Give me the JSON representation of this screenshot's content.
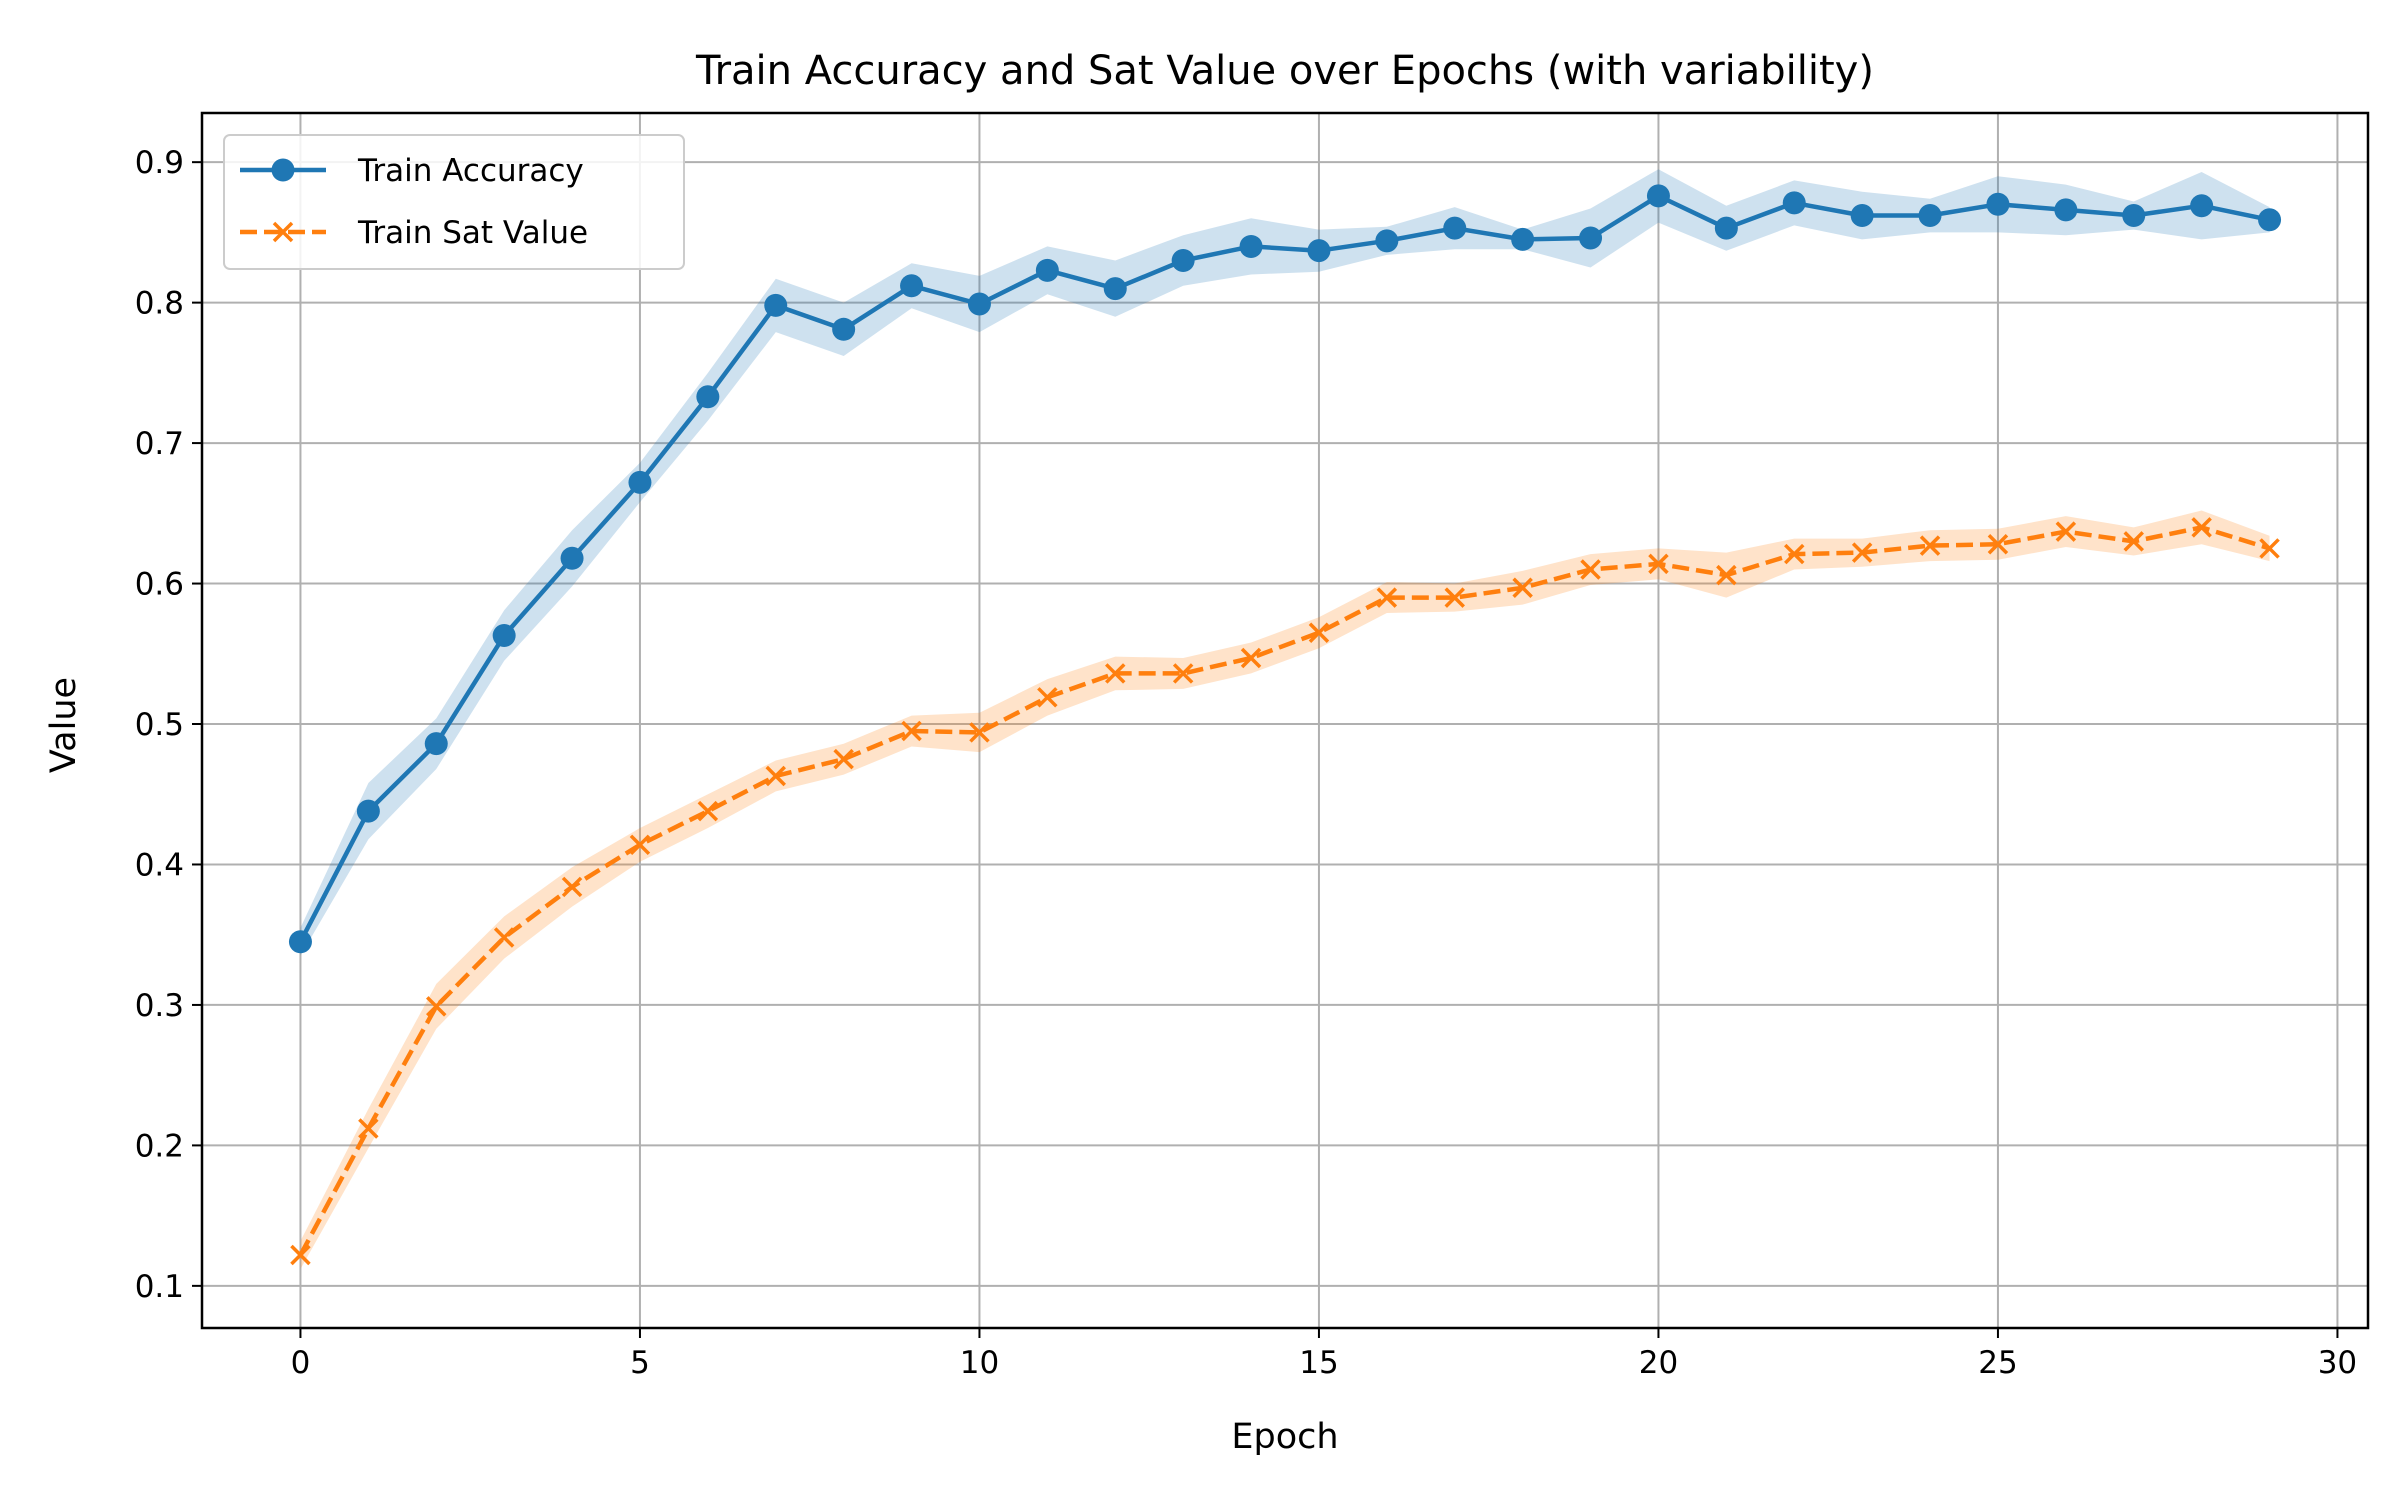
{
  "chart_data": {
    "type": "line",
    "title": "Train Accuracy and Sat Value over Epochs (with variability)",
    "xlabel": "Epoch",
    "ylabel": "Value",
    "xlim": [
      -1.45,
      30.45
    ],
    "ylim": [
      0.07,
      0.935
    ],
    "xticks": [
      0,
      5,
      10,
      15,
      20,
      25,
      30
    ],
    "yticks": [
      0.1,
      0.2,
      0.3,
      0.4,
      0.5,
      0.6,
      0.7,
      0.8,
      0.9
    ],
    "xtick_labels": [
      "0",
      "5",
      "10",
      "15",
      "20",
      "25",
      "30"
    ],
    "ytick_labels": [
      "0.1",
      "0.2",
      "0.3",
      "0.4",
      "0.5",
      "0.6",
      "0.7",
      "0.8",
      "0.9"
    ],
    "grid": true,
    "legend_position": "top-left",
    "x": [
      0,
      1,
      2,
      3,
      4,
      5,
      6,
      7,
      8,
      9,
      10,
      11,
      12,
      13,
      14,
      15,
      16,
      17,
      18,
      19,
      20,
      21,
      22,
      23,
      24,
      25,
      26,
      27,
      28,
      29
    ],
    "series": [
      {
        "name": "Train Accuracy",
        "color": "#1f77b4",
        "line_style": "solid",
        "marker": "circle",
        "values": [
          0.345,
          0.438,
          0.486,
          0.563,
          0.618,
          0.672,
          0.733,
          0.798,
          0.781,
          0.812,
          0.799,
          0.823,
          0.81,
          0.83,
          0.84,
          0.837,
          0.844,
          0.853,
          0.845,
          0.846,
          0.876,
          0.853,
          0.871,
          0.862,
          0.862,
          0.87,
          0.866,
          0.862,
          0.869,
          0.859
        ],
        "band_lower": [
          0.335,
          0.418,
          0.468,
          0.545,
          0.598,
          0.658,
          0.716,
          0.779,
          0.762,
          0.796,
          0.779,
          0.806,
          0.79,
          0.812,
          0.82,
          0.822,
          0.834,
          0.838,
          0.838,
          0.825,
          0.857,
          0.837,
          0.855,
          0.845,
          0.85,
          0.85,
          0.848,
          0.852,
          0.845,
          0.85
        ],
        "band_upper": [
          0.355,
          0.458,
          0.504,
          0.581,
          0.638,
          0.686,
          0.75,
          0.817,
          0.8,
          0.828,
          0.819,
          0.84,
          0.83,
          0.848,
          0.86,
          0.852,
          0.854,
          0.868,
          0.852,
          0.867,
          0.895,
          0.869,
          0.887,
          0.879,
          0.874,
          0.89,
          0.884,
          0.872,
          0.893,
          0.868
        ]
      },
      {
        "name": "Train Sat Value",
        "color": "#ff7f0e",
        "line_style": "dashed",
        "marker": "x",
        "values": [
          0.122,
          0.212,
          0.299,
          0.348,
          0.384,
          0.414,
          0.438,
          0.463,
          0.475,
          0.495,
          0.494,
          0.519,
          0.536,
          0.536,
          0.547,
          0.565,
          0.59,
          0.59,
          0.597,
          0.61,
          0.614,
          0.606,
          0.621,
          0.622,
          0.627,
          0.628,
          0.637,
          0.63,
          0.64,
          0.625
        ],
        "band_lower": [
          0.112,
          0.198,
          0.283,
          0.333,
          0.37,
          0.402,
          0.426,
          0.452,
          0.464,
          0.484,
          0.48,
          0.506,
          0.524,
          0.525,
          0.536,
          0.554,
          0.579,
          0.58,
          0.585,
          0.599,
          0.603,
          0.59,
          0.61,
          0.612,
          0.616,
          0.617,
          0.626,
          0.62,
          0.628,
          0.616
        ],
        "band_upper": [
          0.132,
          0.226,
          0.315,
          0.363,
          0.398,
          0.426,
          0.45,
          0.474,
          0.486,
          0.506,
          0.508,
          0.532,
          0.548,
          0.547,
          0.558,
          0.576,
          0.601,
          0.6,
          0.609,
          0.621,
          0.625,
          0.622,
          0.632,
          0.632,
          0.638,
          0.639,
          0.648,
          0.64,
          0.652,
          0.634
        ]
      }
    ]
  }
}
